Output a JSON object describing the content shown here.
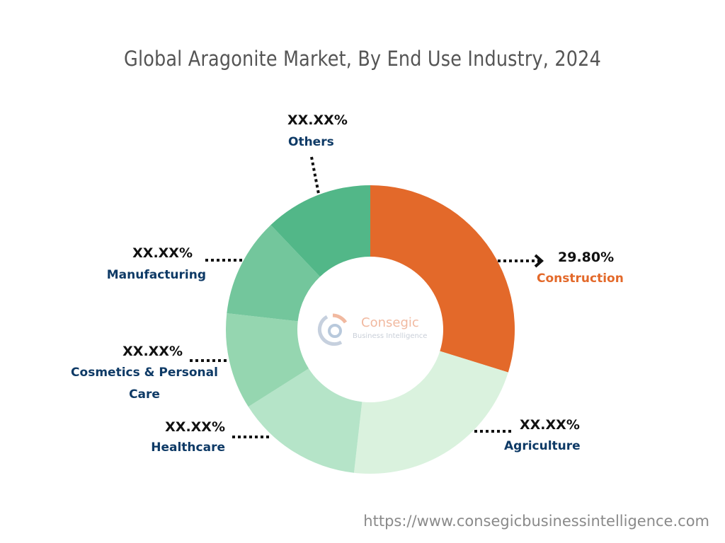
{
  "title": "Global Aragonite Market, By End Use Industry, 2024",
  "footer_url": "https://www.consegicbusinessintelligence.com",
  "watermark": {
    "line1": "Consegic",
    "line2": "Business Intelligence"
  },
  "labels": {
    "construction": {
      "pct": "29.80%",
      "name": "Construction"
    },
    "agriculture": {
      "pct": "XX.XX%",
      "name": "Agriculture"
    },
    "healthcare": {
      "pct": "XX.XX%",
      "name": "Healthcare"
    },
    "cosmetics": {
      "pct": "XX.XX%",
      "name1": "Cosmetics & Personal",
      "name2": "Care"
    },
    "manufacturing": {
      "pct": "XX.XX%",
      "name": "Manufacturing"
    },
    "others": {
      "pct": "XX.XX%",
      "name": "Others"
    }
  },
  "chart_data": {
    "type": "pie",
    "subtype": "donut",
    "title": "Global Aragonite Market, By End Use Industry, 2024",
    "categories": [
      "Construction",
      "Agriculture",
      "Healthcare",
      "Cosmetics & Personal Care",
      "Manufacturing",
      "Others"
    ],
    "values": [
      29.8,
      22.0,
      14.2,
      10.8,
      11.1,
      12.1
    ],
    "value_labels": [
      "29.80%",
      "XX.XX%",
      "XX.XX%",
      "XX.XX%",
      "XX.XX%",
      "XX.XX%"
    ],
    "colors": [
      "#e3692a",
      "#daf2de",
      "#b5e4c8",
      "#95d6b0",
      "#73c69c",
      "#52b788"
    ],
    "start_angle_deg": 0,
    "direction": "clockwise",
    "legend": "none (callout labels)"
  }
}
